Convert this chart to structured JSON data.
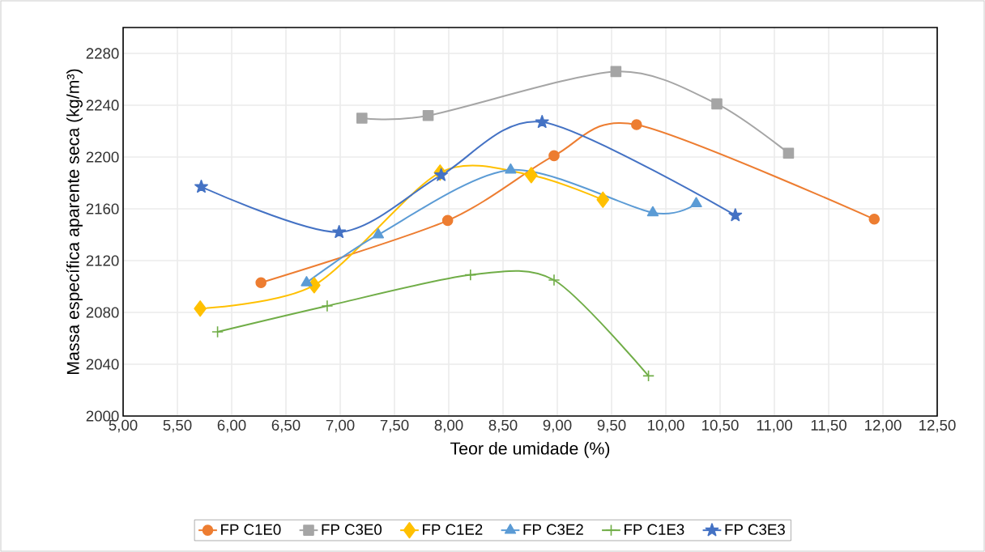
{
  "chart_data": {
    "type": "line",
    "xlabel": "Teor de umidade (%)",
    "ylabel": "Massa específica aparente seca (kg/m³)",
    "xlim": [
      5,
      12.5
    ],
    "xticks": [
      {
        "value": 5,
        "label": "5,00"
      },
      {
        "value": 5.5,
        "label": "5,50"
      },
      {
        "value": 6,
        "label": "6,00"
      },
      {
        "value": 6.5,
        "label": "6,50"
      },
      {
        "value": 7,
        "label": "7,00"
      },
      {
        "value": 7.5,
        "label": "7,50"
      },
      {
        "value": 8,
        "label": "8,00"
      },
      {
        "value": 8.5,
        "label": "8,50"
      },
      {
        "value": 9,
        "label": "9,00"
      },
      {
        "value": 9.5,
        "label": "9,50"
      },
      {
        "value": 10,
        "label": "10,00"
      },
      {
        "value": 10.5,
        "label": "10,50"
      },
      {
        "value": 11,
        "label": "11,00"
      },
      {
        "value": 11.5,
        "label": "11,50"
      },
      {
        "value": 12,
        "label": "12,00"
      },
      {
        "value": 12.5,
        "label": "12,50"
      }
    ],
    "ylim": [
      2000,
      2300
    ],
    "yticks": [
      2000,
      2040,
      2080,
      2120,
      2160,
      2200,
      2240,
      2280
    ],
    "grid": true,
    "legend": "bottom",
    "line_style": "solid",
    "series": [
      {
        "name": "FP C1E0",
        "color": "#ed7d31",
        "marker": "circle",
        "x": [
          6.27,
          7.99,
          8.97,
          9.73,
          11.92
        ],
        "values": [
          2103,
          2151,
          2201,
          2225,
          2152
        ]
      },
      {
        "name": "FP C3E0",
        "color": "#a5a5a5",
        "marker": "square",
        "x": [
          7.2,
          7.81,
          9.54,
          10.47,
          11.13
        ],
        "values": [
          2230,
          2232,
          2266,
          2241,
          2203
        ]
      },
      {
        "name": "FP C1E2",
        "color": "#ffc000",
        "marker": "diamond",
        "x": [
          5.71,
          6.76,
          7.92,
          8.76,
          9.42
        ],
        "values": [
          2083,
          2101,
          2188,
          2186,
          2167
        ]
      },
      {
        "name": "FP C3E2",
        "color": "#5b9bd5",
        "marker": "triangle",
        "x": [
          6.69,
          7.35,
          8.57,
          9.88,
          10.28
        ],
        "values": [
          2103,
          2140,
          2190,
          2157,
          2164
        ]
      },
      {
        "name": "FP C1E3",
        "color": "#70ad47",
        "marker": "cross",
        "x": [
          5.87,
          6.88,
          8.2,
          8.97,
          9.84
        ],
        "values": [
          2065,
          2085,
          2109,
          2105,
          2031
        ]
      },
      {
        "name": "FP C3E3",
        "color": "#4472c4",
        "marker": "star",
        "x": [
          5.72,
          6.99,
          7.93,
          8.86,
          10.64
        ],
        "values": [
          2177,
          2142,
          2186,
          2227,
          2155
        ]
      }
    ]
  }
}
